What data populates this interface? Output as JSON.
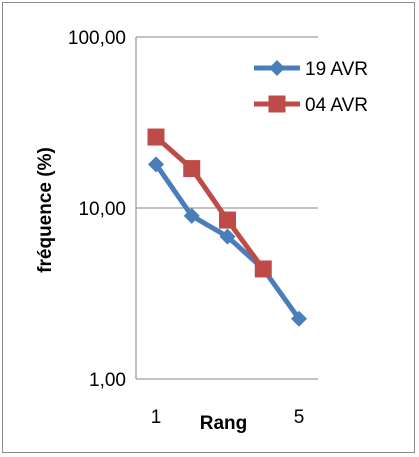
{
  "chart_data": {
    "type": "line",
    "title": "",
    "xlabel": "Rang",
    "ylabel": "fréquence (%)",
    "x_scale": "linear",
    "y_scale": "log",
    "xlim": [
      1,
      5
    ],
    "ylim": [
      1,
      100
    ],
    "x_tick_labels": [
      "1",
      "5"
    ],
    "y_tick_labels": [
      "1,00",
      "10,00",
      "100,00"
    ],
    "y_tick_values": [
      1,
      10,
      100
    ],
    "grid": "horizontal major gridlines",
    "legend_position": "top-right",
    "series": [
      {
        "name": "19 AVR",
        "color": "#4a7ebb",
        "marker": "diamond",
        "x": [
          1,
          2,
          3,
          4,
          5
        ],
        "y": [
          18,
          9,
          6.8,
          4.4,
          2.25
        ]
      },
      {
        "name": "04 AVR",
        "color": "#be4b48",
        "marker": "square",
        "x": [
          1,
          2,
          3,
          4
        ],
        "y": [
          26,
          17,
          8.5,
          4.4
        ]
      }
    ]
  }
}
